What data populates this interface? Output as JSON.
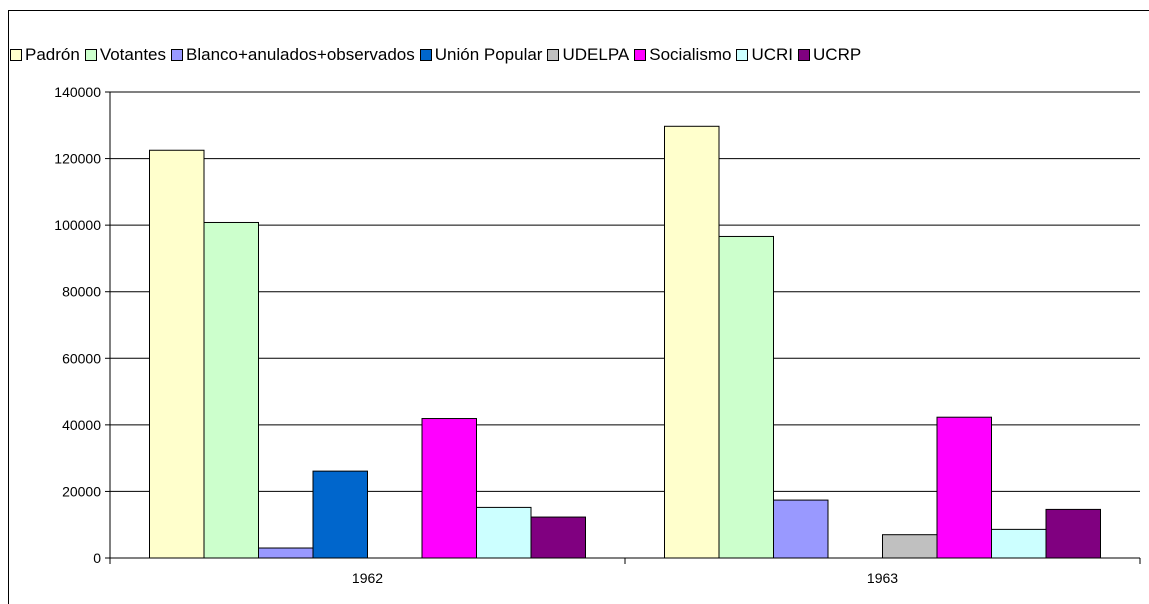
{
  "chart_data": {
    "type": "bar",
    "title": "",
    "xlabel": "",
    "ylabel": "",
    "categories": [
      "1962",
      "1963"
    ],
    "ylim": [
      0,
      140000
    ],
    "yticks": [
      0,
      20000,
      40000,
      60000,
      80000,
      100000,
      120000,
      140000
    ],
    "grid": "horizontal",
    "legend_position": "top",
    "series": [
      {
        "name": "Padrón",
        "color": "#ffffcc",
        "values": [
          122500,
          129700
        ]
      },
      {
        "name": "Votantes",
        "color": "#ccffcc",
        "values": [
          100800,
          96600
        ]
      },
      {
        "name": "Blanco+anulados+observados",
        "color": "#9999ff",
        "values": [
          3000,
          17400
        ]
      },
      {
        "name": "Unión Popular",
        "color": "#0066cc",
        "values": [
          26100,
          0
        ]
      },
      {
        "name": "UDELPA",
        "color": "#c0c0c0",
        "values": [
          0,
          7000
        ]
      },
      {
        "name": "Socialismo",
        "color": "#ff00ff",
        "values": [
          41900,
          42300
        ]
      },
      {
        "name": "UCRI",
        "color": "#ccffff",
        "values": [
          15200,
          8600
        ]
      },
      {
        "name": "UCRP",
        "color": "#800080",
        "values": [
          12300,
          14600
        ]
      }
    ]
  }
}
